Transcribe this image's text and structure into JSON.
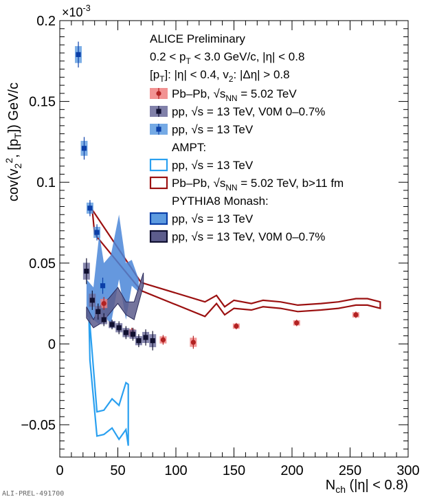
{
  "chart_data": {
    "type": "scatter",
    "title": "ALICE Preliminary",
    "subtitle_lines": [
      "0.2 < p_T < 3.0 GeV/c, |η| < 0.8",
      "[p_T]: |η| < 0.4, v_2: |Δη| > 0.8"
    ],
    "xlabel": "N_ch (|η| < 0.8)",
    "ylabel": "cov(v_2^2, [p_T]) GeV/c",
    "y_exponent": "×10^-3",
    "xlim": [
      0,
      300
    ],
    "ylim": [
      -0.07,
      0.2
    ],
    "x_ticks": [
      0,
      50,
      100,
      150,
      200,
      250,
      300
    ],
    "y_ticks": [
      -0.05,
      0,
      0.05,
      0.1,
      0.15,
      0.2
    ],
    "y_tick_labels": [
      "−0.05",
      "0",
      "0.05",
      "0.1",
      "0.15",
      "0.2"
    ],
    "legend_location": "top-right",
    "legend": [
      {
        "kind": "marker-box",
        "label": "Pb–Pb, √s_NN = 5.02 TeV",
        "color": "#b22222",
        "box": "#f08080",
        "marker": "circle"
      },
      {
        "kind": "marker-box",
        "label": "pp, √s = 13 TeV, V0M 0–0.7%",
        "color": "#101030",
        "box": "#6a6a9a",
        "marker": "square"
      },
      {
        "kind": "marker-box",
        "label": "pp, √s = 13 TeV",
        "color": "#0b3fa8",
        "box": "#5d9be0",
        "marker": "square"
      },
      {
        "kind": "header",
        "label": "AMPT:"
      },
      {
        "kind": "outline",
        "label": "pp, √s = 13 TeV",
        "color": "#2aa0f0",
        "fill": "none"
      },
      {
        "kind": "outline",
        "label": "Pb–Pb, √s_NN = 5.02 TeV, b>11 fm",
        "color": "#9b1010",
        "fill": "none"
      },
      {
        "kind": "header",
        "label": "PYTHIA8 Monash:"
      },
      {
        "kind": "outline",
        "label": "pp, √s = 13 TeV",
        "color": "#0b3fa8",
        "fill": "#5d9be0"
      },
      {
        "kind": "outline",
        "label": "pp, √s = 13 TeV, V0M 0–0.7%",
        "color": "#101030",
        "fill": "#5c5c8c"
      }
    ],
    "series": [
      {
        "name": "Pb–Pb, √s_NN = 5.02 TeV",
        "color": "#b22222",
        "syst_color": "#f08080",
        "marker": "circle",
        "points": [
          {
            "x": 38,
            "y": 0.025,
            "err": 0.004
          },
          {
            "x": 62,
            "y": 0.007,
            "err": 0.003
          },
          {
            "x": 89,
            "y": 0.0025,
            "err": 0.003
          },
          {
            "x": 115,
            "y": 0.001,
            "err": 0.004
          },
          {
            "x": 152,
            "y": 0.011,
            "err": 0.002
          },
          {
            "x": 204,
            "y": 0.013,
            "err": 0.002
          },
          {
            "x": 255,
            "y": 0.018,
            "err": 0.002
          }
        ]
      },
      {
        "name": "pp, √s = 13 TeV, V0M 0–0.7%",
        "color": "#101030",
        "syst_color": "#6a6a9a",
        "marker": "square",
        "points": [
          {
            "x": 23,
            "y": 0.045,
            "err": 0.008
          },
          {
            "x": 28,
            "y": 0.027,
            "err": 0.006
          },
          {
            "x": 33,
            "y": 0.02,
            "err": 0.005
          },
          {
            "x": 38,
            "y": 0.015,
            "err": 0.004
          },
          {
            "x": 45,
            "y": 0.012,
            "err": 0.003
          },
          {
            "x": 51,
            "y": 0.01,
            "err": 0.004
          },
          {
            "x": 57,
            "y": 0.007,
            "err": 0.004
          },
          {
            "x": 63,
            "y": 0.006,
            "err": 0.004
          },
          {
            "x": 68,
            "y": 0.002,
            "err": 0.004
          },
          {
            "x": 74,
            "y": 0.004,
            "err": 0.005
          },
          {
            "x": 80,
            "y": 0.002,
            "err": 0.006
          }
        ]
      },
      {
        "name": "pp, √s = 13 TeV",
        "color": "#0b3fa8",
        "syst_color": "#5d9be0",
        "marker": "square",
        "points": [
          {
            "x": 16,
            "y": 0.179,
            "err": 0.008
          },
          {
            "x": 21,
            "y": 0.121,
            "err": 0.007
          },
          {
            "x": 26,
            "y": 0.084,
            "err": 0.005
          },
          {
            "x": 32,
            "y": 0.069,
            "err": 0.005
          },
          {
            "x": 37,
            "y": 0.036,
            "err": 0.005
          }
        ]
      }
    ],
    "bands": [
      {
        "name": "AMPT pp, √s = 13 TeV",
        "stroke": "#2aa0f0",
        "fill": "none",
        "upper": [
          [
            25,
            0.02
          ],
          [
            32,
            -0.042
          ],
          [
            38,
            -0.041
          ],
          [
            45,
            -0.034
          ],
          [
            51,
            -0.038
          ],
          [
            57,
            -0.024
          ],
          [
            59,
            -0.025
          ]
        ],
        "lower": [
          [
            59,
            -0.063
          ],
          [
            57,
            -0.053
          ],
          [
            51,
            -0.059
          ],
          [
            45,
            -0.052
          ],
          [
            38,
            -0.056
          ],
          [
            32,
            -0.057
          ],
          [
            26,
            -0.01
          ]
        ]
      },
      {
        "name": "AMPT Pb–Pb, √s_NN = 5.02 TeV, b>11 fm",
        "stroke": "#9b1010",
        "fill": "none",
        "upper": [
          [
            28,
            0.083
          ],
          [
            70,
            0.038
          ],
          [
            125,
            0.026
          ],
          [
            135,
            0.03
          ],
          [
            142,
            0.023
          ],
          [
            150,
            0.027
          ],
          [
            165,
            0.025
          ],
          [
            175,
            0.027
          ],
          [
            190,
            0.026
          ],
          [
            205,
            0.024
          ],
          [
            225,
            0.025
          ],
          [
            240,
            0.026
          ],
          [
            255,
            0.028
          ],
          [
            265,
            0.028
          ],
          [
            276,
            0.026
          ]
        ],
        "lower": [
          [
            276,
            0.022
          ],
          [
            265,
            0.024
          ],
          [
            255,
            0.024
          ],
          [
            240,
            0.022
          ],
          [
            225,
            0.021
          ],
          [
            205,
            0.02
          ],
          [
            190,
            0.022
          ],
          [
            175,
            0.023
          ],
          [
            165,
            0.021
          ],
          [
            150,
            0.022
          ],
          [
            142,
            0.018
          ],
          [
            135,
            0.025
          ],
          [
            125,
            0.017
          ],
          [
            70,
            0.033
          ],
          [
            30,
            0.068
          ]
        ]
      },
      {
        "name": "PYTHIA8 Monash pp, √s = 13 TeV",
        "stroke": "none",
        "fill": "#4a86d8",
        "upper": [
          [
            23,
            0.04
          ],
          [
            29,
            0.035
          ],
          [
            34,
            0.068
          ],
          [
            38,
            0.05
          ],
          [
            44,
            0.055
          ],
          [
            51,
            0.08
          ],
          [
            57,
            0.05
          ],
          [
            62,
            0.052
          ],
          [
            68,
            0.04
          ]
        ],
        "lower": [
          [
            68,
            0.032
          ],
          [
            62,
            0.036
          ],
          [
            57,
            0.015
          ],
          [
            51,
            0.04
          ],
          [
            44,
            0.012
          ],
          [
            38,
            0.018
          ],
          [
            34,
            0.012
          ],
          [
            29,
            0.015
          ],
          [
            23,
            0.017
          ]
        ]
      },
      {
        "name": "PYTHIA8 Monash pp, √s = 13 TeV, V0M 0–0.7%",
        "stroke": "#2b2b5b",
        "fill": "#5c5c8c",
        "upper": [
          [
            23,
            0.023
          ],
          [
            29,
            0.015
          ],
          [
            36,
            0.025
          ],
          [
            42,
            0.028
          ],
          [
            50,
            0.035
          ],
          [
            57,
            0.026
          ],
          [
            64,
            0.026
          ],
          [
            72,
            0.044
          ]
        ],
        "lower": [
          [
            72,
            0.036
          ],
          [
            64,
            0.015
          ],
          [
            57,
            0.018
          ],
          [
            50,
            0.025
          ],
          [
            42,
            0.018
          ],
          [
            36,
            0.013
          ],
          [
            29,
            0.01
          ],
          [
            23,
            0.016
          ]
        ]
      }
    ]
  },
  "watermark": "ALI-PREL-491700"
}
